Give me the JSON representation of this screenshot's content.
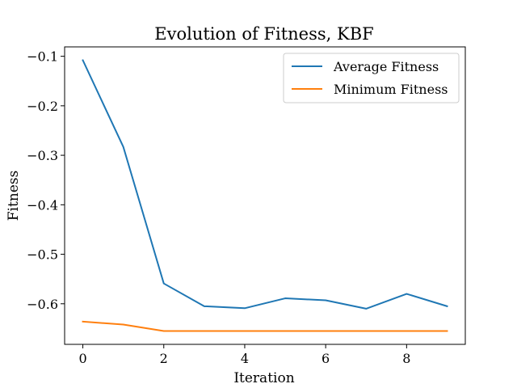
{
  "chart_data": {
    "type": "line",
    "title": "Evolution of Fitness, KBF",
    "xlabel": "Iteration",
    "ylabel": "Fitness",
    "x": [
      0,
      1,
      2,
      3,
      4,
      5,
      6,
      7,
      8,
      9
    ],
    "series": [
      {
        "name": "Average Fitness",
        "color": "#1f77b4",
        "values": [
          -0.108,
          -0.283,
          -0.559,
          -0.605,
          -0.609,
          -0.589,
          -0.593,
          -0.61,
          -0.58,
          -0.605
        ]
      },
      {
        "name": "Minimum Fitness",
        "color": "#ff7f0e",
        "values": [
          -0.636,
          -0.642,
          -0.655,
          -0.655,
          -0.655,
          -0.655,
          -0.655,
          -0.655,
          -0.655,
          -0.655
        ]
      }
    ],
    "xlim": [
      -0.45,
      9.45
    ],
    "ylim": [
      -0.682,
      -0.081
    ],
    "xticks": [
      0,
      2,
      4,
      6,
      8
    ],
    "xtick_labels": [
      "0",
      "2",
      "4",
      "6",
      "8"
    ],
    "yticks": [
      -0.1,
      -0.2,
      -0.3,
      -0.4,
      -0.5,
      -0.6
    ],
    "ytick_labels": [
      "−0.1",
      "−0.2",
      "−0.3",
      "−0.4",
      "−0.5",
      "−0.6"
    ],
    "grid": false,
    "legend_position": "top-right"
  }
}
